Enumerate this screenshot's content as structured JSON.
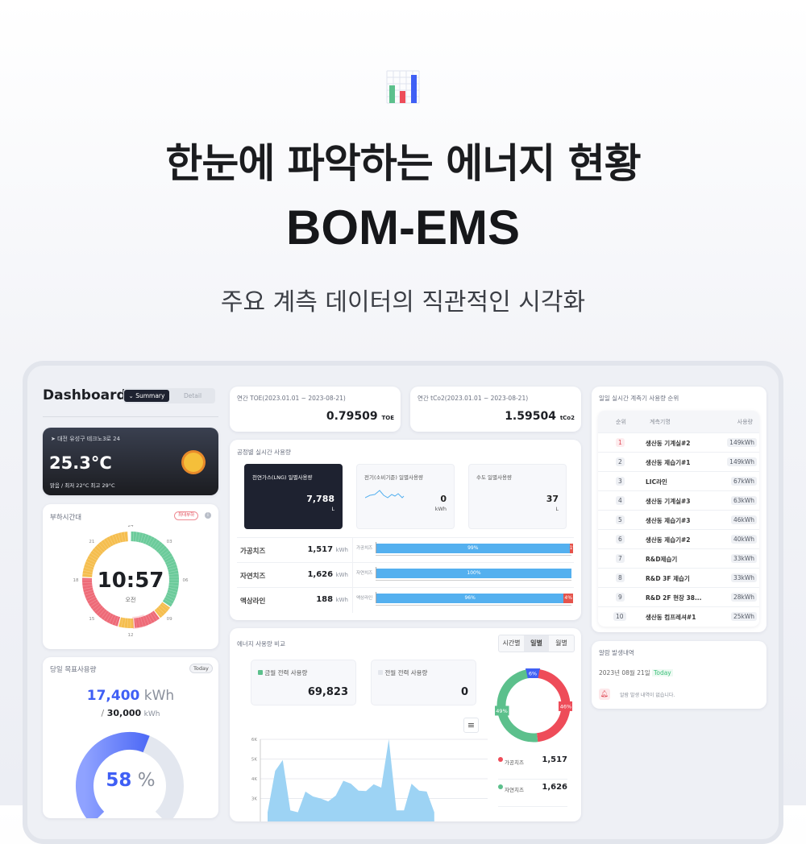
{
  "hero": {
    "title": "한눈에 파악하는 에너지 현황",
    "brand": "BOM-EMS",
    "subtitle": "주요 계측 데이터의 직관적인 시각화",
    "icon": "bar-chart-icon"
  },
  "colors": {
    "green": "#5cc08c",
    "red": "#ee4c59",
    "blue": "#3f5ff5",
    "bar": "#54b0ef",
    "yellow": "#f5be4f",
    "dark": "#1e2230"
  },
  "dashboard": {
    "title": "Dashboard",
    "tabs": [
      {
        "label": "Summary",
        "active": true
      },
      {
        "label": "Detail",
        "active": false
      }
    ]
  },
  "weather": {
    "location": "대전 유성구 테크노3로 24",
    "temperature": "25.3°C",
    "summary": "맑음 / 최저 22°C  최고 29°C",
    "icon": "sun-icon"
  },
  "load": {
    "title": "부하시간대",
    "badge": "최대부하",
    "time": "10:57",
    "ampm": "오전",
    "hours": [
      "24",
      "03",
      "06",
      "09",
      "12",
      "15",
      "18",
      "21"
    ],
    "segments": [
      {
        "from": 0,
        "to": 8.3,
        "level": "light"
      },
      {
        "from": 8.3,
        "to": 9.5,
        "level": "mid"
      },
      {
        "from": 9.5,
        "to": 11.7,
        "level": "peak"
      },
      {
        "from": 11.7,
        "to": 13,
        "level": "mid"
      },
      {
        "from": 13,
        "to": 18.2,
        "level": "peak"
      },
      {
        "from": 18.2,
        "to": 23.8,
        "level": "mid"
      }
    ],
    "current_hour": 10.95
  },
  "target": {
    "title": "당일 목표사용량",
    "badge": "Today",
    "current": "17,400",
    "unit": "kWh",
    "slash": "/",
    "goal": "30,000",
    "percent": 58,
    "percent_label": "58",
    "percent_sign": "%"
  },
  "toe": {
    "label": "연간 TOE(2023.01.01 ~ 2023-08-21)",
    "value": "0.79509",
    "unit": "TOE"
  },
  "co2": {
    "label": "연간 tCo2(2023.01.01 ~ 2023-08-21)",
    "value": "1.59504",
    "unit": "tCo2"
  },
  "process": {
    "title": "공정별 실시간 사용량",
    "tiles": [
      {
        "label": "천연가스(LNG) 일별사용량",
        "value": "7,788",
        "unit": "L"
      },
      {
        "label": "전기(소비기준) 일별사용량",
        "value": "0",
        "unit": "kWh"
      },
      {
        "label": "수도 일별사용량",
        "value": "37",
        "unit": "L"
      }
    ],
    "rows": [
      {
        "name": "가공치즈",
        "value": "1,517",
        "unit": "kWh",
        "bar_label": "가공치즈",
        "main": 99,
        "main_label": "99%",
        "rest": 1,
        "rest_label": "1%"
      },
      {
        "name": "자연치즈",
        "value": "1,626",
        "unit": "kWh",
        "bar_label": "자연치즈",
        "main": 100,
        "main_label": "100%",
        "rest": 0,
        "rest_label": ""
      },
      {
        "name": "액상라인",
        "value": "188",
        "unit": "kWh",
        "bar_label": "액상라인",
        "main": 96,
        "main_label": "96%",
        "rest": 4,
        "rest_label": "4%"
      }
    ]
  },
  "compare": {
    "title": "에너지 사용량 비교",
    "tabs": [
      {
        "label": "시간별",
        "active": false
      },
      {
        "label": "일별",
        "active": true
      },
      {
        "label": "월별",
        "active": false
      }
    ],
    "this_month": {
      "label": "금월 전력 사용량",
      "value": "69,823"
    },
    "last_month": {
      "label": "전월 전력 사용량",
      "value": "0"
    },
    "donut": [
      {
        "label": "6%",
        "value": 6,
        "color": "#3f5ff5"
      },
      {
        "label": "46%",
        "value": 46,
        "color": "#ee4c59"
      },
      {
        "label": "49%",
        "value": 49,
        "color": "#5cc08c"
      }
    ],
    "legend": [
      {
        "name": "가공치즈",
        "value": "1,517",
        "color": "#ee4c59"
      },
      {
        "name": "자연치즈",
        "value": "1,626",
        "color": "#5cc08c"
      }
    ],
    "menu_icon": "hamburger-menu-icon"
  },
  "chart_data": {
    "type": "area",
    "yticks": [
      "6K",
      "5K",
      "4K",
      "3K"
    ],
    "ylim": [
      0,
      6000
    ],
    "grid": true,
    "values": [
      2300,
      4400,
      4950,
      2400,
      2300,
      3350,
      3100,
      3000,
      2850,
      3150,
      3900,
      3750,
      3400,
      3380,
      3720,
      3550,
      6000,
      2400,
      2400,
      3750,
      3400,
      3350,
      2300
    ]
  },
  "ranking": {
    "title": "일일 실시간 계측기 사용량 순위",
    "headers": [
      "순위",
      "계측기명",
      "사용량"
    ],
    "rows": [
      {
        "rank": "1",
        "name": "생산동 기계실#2",
        "usage": "149kWh"
      },
      {
        "rank": "2",
        "name": "생산동 제습기#1",
        "usage": "149kWh"
      },
      {
        "rank": "3",
        "name": "LIC라인",
        "usage": "67kWh"
      },
      {
        "rank": "4",
        "name": "생산동 기계실#3",
        "usage": "63kWh"
      },
      {
        "rank": "5",
        "name": "생산동 제습기#3",
        "usage": "46kWh"
      },
      {
        "rank": "6",
        "name": "생산동 제습기#2",
        "usage": "40kWh"
      },
      {
        "rank": "7",
        "name": "R&D제습기",
        "usage": "33kWh"
      },
      {
        "rank": "8",
        "name": "R&D 3F 제습기",
        "usage": "33kWh"
      },
      {
        "rank": "9",
        "name": "R&D 2F 현장 38...",
        "usage": "28kWh"
      },
      {
        "rank": "10",
        "name": "생산동 컴프레셔#1",
        "usage": "25kWh"
      }
    ]
  },
  "alarm": {
    "title": "알람 발생내역",
    "date": "2023년 08월 21일",
    "today": "Today",
    "empty": "알람 발생 내역이 없습니다.",
    "icon": "bell-icon"
  }
}
